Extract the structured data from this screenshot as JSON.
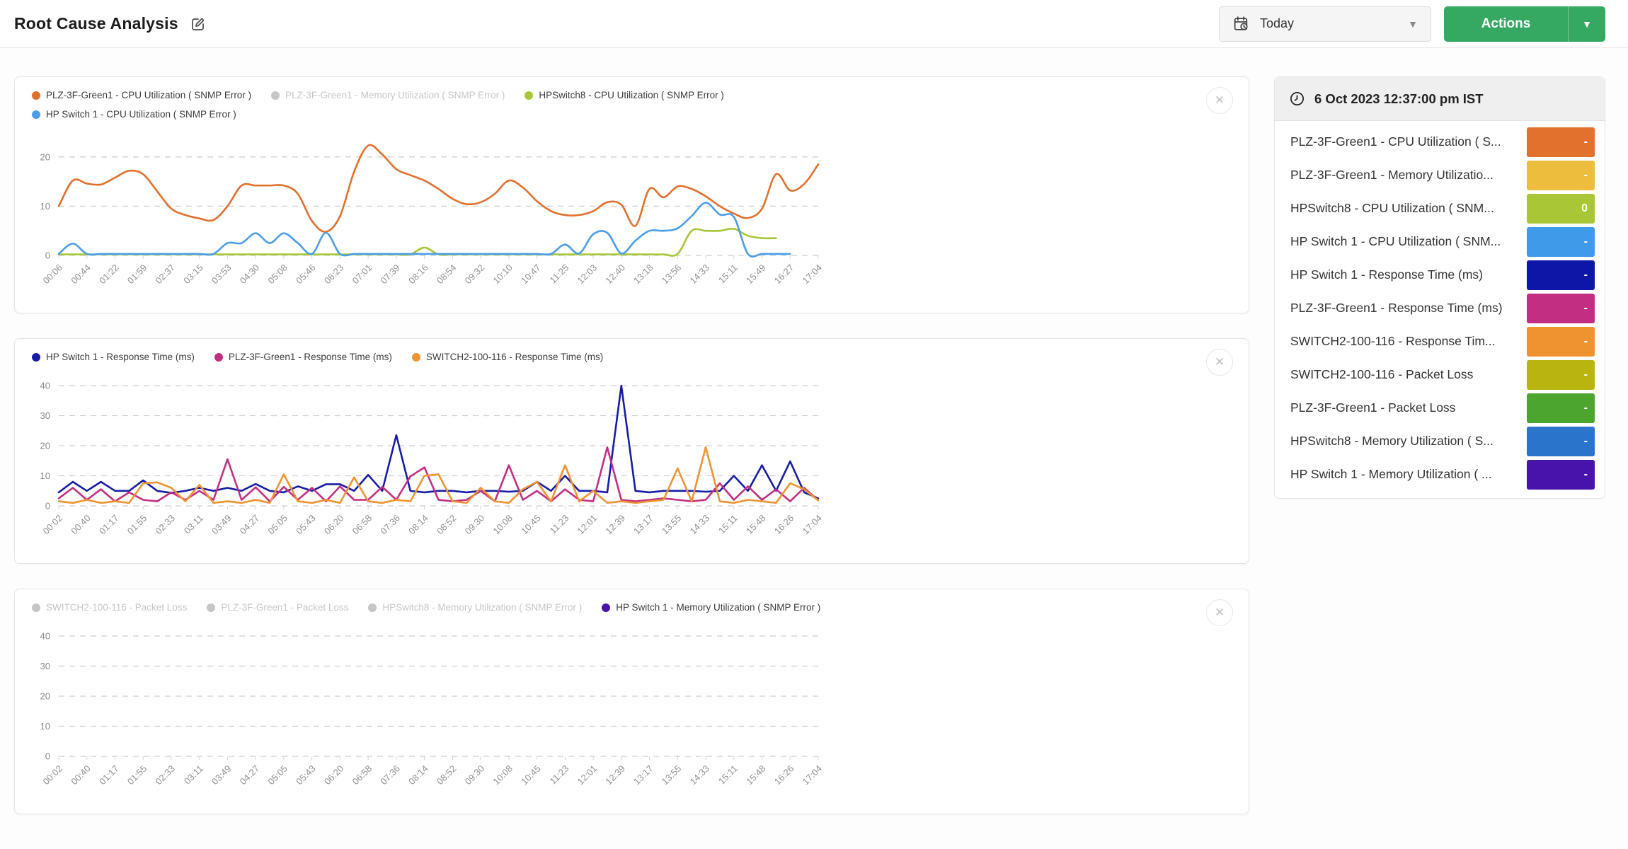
{
  "header": {
    "title": "Root Cause Analysis",
    "date_range_label": "Today",
    "actions_label": "Actions"
  },
  "colors": {
    "accent_green": "#35a862",
    "grid_line": "#cfcfcf",
    "disabled_legend": "#c6c6c6"
  },
  "sidebar": {
    "timestamp": "6 Oct 2023 12:37:00 pm IST",
    "rows": [
      {
        "label": "PLZ-3F-Green1 - CPU Utilization ( S...",
        "value": "-",
        "color": "#e2712e"
      },
      {
        "label": "PLZ-3F-Green1 - Memory Utilizatio...",
        "value": "-",
        "color": "#edbe3d"
      },
      {
        "label": "HPSwitch8 - CPU Utilization ( SNM...",
        "value": "0",
        "color": "#a9c637"
      },
      {
        "label": "HP Switch 1 - CPU Utilization ( SNM...",
        "value": "-",
        "color": "#3f9be9"
      },
      {
        "label": "HP Switch 1 - Response Time (ms)",
        "value": "-",
        "color": "#0d16a6"
      },
      {
        "label": "PLZ-3F-Green1 - Response Time (ms)",
        "value": "-",
        "color": "#c22f82"
      },
      {
        "label": "SWITCH2-100-116 - Response Tim...",
        "value": "-",
        "color": "#ef9330"
      },
      {
        "label": "SWITCH2-100-116 - Packet Loss",
        "value": "-",
        "color": "#b9b40f"
      },
      {
        "label": "PLZ-3F-Green1 - Packet Loss",
        "value": "-",
        "color": "#4ba52f"
      },
      {
        "label": "HPSwitch8 - Memory Utilization ( S...",
        "value": "-",
        "color": "#2a75cb"
      },
      {
        "label": "HP Switch 1 - Memory Utilization ( ...",
        "value": "-",
        "color": "#4813ab"
      }
    ]
  },
  "chart_data": [
    {
      "type": "line",
      "ylim": [
        0,
        25
      ],
      "yticks": [
        0,
        10,
        20
      ],
      "grid": "dashed",
      "legend_position": "top-left",
      "x_labels": [
        "00:06",
        "00:44",
        "01:22",
        "01:59",
        "02:37",
        "03:15",
        "03:53",
        "04:30",
        "05:08",
        "05:46",
        "06:23",
        "07:01",
        "07:39",
        "08:16",
        "08:54",
        "09:32",
        "10:10",
        "10:47",
        "11:25",
        "12:03",
        "12:40",
        "13:18",
        "13:56",
        "14:33",
        "15:11",
        "15:49",
        "16:27",
        "17:04"
      ],
      "series": [
        {
          "name": "PLZ-3F-Green1 - CPU Utilization ( SNMP Error )",
          "color": "#e0702c",
          "enabled": true,
          "smooth": true,
          "values": [
            10,
            15.2,
            14.6,
            14.4,
            15.8,
            17.2,
            16.5,
            13,
            9.5,
            8.2,
            7.5,
            7.2,
            10,
            14.2,
            14.2,
            14.2,
            14.2,
            12.5,
            7,
            4.8,
            8,
            17,
            22.3,
            20.5,
            17.5,
            16.3,
            15.2,
            13.5,
            11.5,
            10.4,
            10.8,
            12.5,
            15.2,
            13.8,
            11,
            9,
            8.2,
            8.2,
            9,
            10.8,
            10.3,
            6,
            13.5,
            11.8,
            14,
            13.5,
            12,
            10,
            8.5,
            7.6,
            9.5,
            16.5,
            13.2,
            14.5,
            18.5
          ]
        },
        {
          "name": "PLZ-3F-Green1 - Memory Utilization ( SNMP Error )",
          "color": "#c6c6c6",
          "enabled": false,
          "smooth": true,
          "values": []
        },
        {
          "name": "HPSwitch8 - CPU Utilization ( SNMP Error )",
          "color": "#a9c637",
          "enabled": true,
          "smooth": true,
          "values": [
            0.2,
            0.2,
            0.2,
            0.2,
            0.2,
            0.2,
            0.2,
            0.2,
            0.2,
            0.2,
            0.2,
            0.2,
            0.2,
            0.2,
            0.2,
            0.2,
            0.2,
            0.2,
            0.2,
            0.2,
            0.2,
            0.2,
            0.2,
            0.2,
            0.2,
            0.2,
            1.6,
            0.2,
            0.2,
            0.2,
            0.2,
            0.2,
            0.2,
            0.2,
            0.2,
            0.2,
            0.2,
            0.2,
            0.2,
            0.2,
            0.2,
            0.2,
            0.2,
            0.2,
            0.3,
            5,
            5,
            5,
            5.4,
            4,
            3.5,
            3.5,
            null,
            null,
            null
          ]
        },
        {
          "name": "HP Switch 1 - CPU Utilization ( SNMP Error )",
          "color": "#4a9ee9",
          "enabled": true,
          "smooth": true,
          "values": [
            0.3,
            2.4,
            0.3,
            0.3,
            0.3,
            0.3,
            0.3,
            0.3,
            0.3,
            0.3,
            0.3,
            0.3,
            2.5,
            2.5,
            4.5,
            2.5,
            4.5,
            2.5,
            0.3,
            4.6,
            0.3,
            0.3,
            0.3,
            0.3,
            0.3,
            0.3,
            0.3,
            0.3,
            0.3,
            0.3,
            0.3,
            0.3,
            0.3,
            0.3,
            0.3,
            0.3,
            2.2,
            0.4,
            4.3,
            4.6,
            0.4,
            3,
            5,
            5,
            5.5,
            8,
            10.7,
            8.3,
            7.8,
            0.3,
            0.3,
            0.3,
            0.3,
            null,
            null
          ]
        }
      ]
    },
    {
      "type": "line",
      "ylim": [
        0,
        44
      ],
      "yticks": [
        0,
        10,
        20,
        30,
        40
      ],
      "grid": "dashed",
      "legend_position": "top-left",
      "x_labels": [
        "00:02",
        "00:40",
        "01:17",
        "01:55",
        "02:33",
        "03:11",
        "03:49",
        "04:27",
        "05:05",
        "05:43",
        "06:20",
        "06:58",
        "07:36",
        "08:14",
        "08:52",
        "09:30",
        "10:08",
        "10:45",
        "11:23",
        "12:01",
        "12:39",
        "13:17",
        "13:55",
        "14:33",
        "15:11",
        "15:48",
        "16:26",
        "17:04"
      ],
      "series": [
        {
          "name": "HP Switch 1 - Response Time (ms)",
          "color": "#151da8",
          "enabled": true,
          "smooth": false,
          "values": [
            4.5,
            8,
            5,
            8,
            5,
            5,
            8.5,
            5,
            4.3,
            5,
            6,
            5,
            6,
            5,
            7.3,
            5,
            4.5,
            6.5,
            5,
            7.2,
            7.2,
            5,
            10.3,
            5,
            23.5,
            5,
            4.5,
            5,
            5,
            4.5,
            5,
            5,
            4.7,
            5,
            8,
            5,
            10,
            5,
            5,
            4.5,
            40,
            5,
            4.5,
            5,
            5,
            5,
            4.7,
            5,
            10,
            5,
            13.5,
            5,
            14.8,
            4.5,
            2.5
          ]
        },
        {
          "name": "PLZ-3F-Green1 - Response Time (ms)",
          "color": "#c22f82",
          "enabled": true,
          "smooth": false,
          "values": [
            2.5,
            6,
            2,
            5.5,
            1.5,
            4.5,
            2,
            1.5,
            4.5,
            2,
            5,
            2,
            15.5,
            2,
            6.2,
            1.5,
            6.3,
            2,
            6,
            1.5,
            6.5,
            2,
            2,
            6.3,
            2,
            9.8,
            12.8,
            2,
            1.5,
            2,
            5,
            1.5,
            13.5,
            2,
            5,
            1.5,
            5.5,
            2,
            1.5,
            19.5,
            2,
            1.5,
            2,
            2.5,
            2,
            1.5,
            2,
            7.5,
            2,
            6.5,
            2,
            5.5,
            1.5,
            6,
            1.8
          ]
        },
        {
          "name": "SWITCH2-100-116 - Response Time (ms)",
          "color": "#ef9330",
          "enabled": true,
          "smooth": false,
          "values": [
            1.5,
            1,
            2,
            1,
            1.5,
            1,
            7.5,
            7.8,
            6,
            1.5,
            7,
            1,
            1.5,
            1,
            2,
            1,
            10.5,
            1.5,
            1,
            2,
            1,
            9.5,
            1.5,
            1,
            2,
            1.5,
            10,
            10.5,
            1.5,
            1,
            6,
            1.5,
            1,
            5.5,
            8,
            1.5,
            13.5,
            1.5,
            5,
            1,
            1.5,
            1,
            1.5,
            2,
            12.5,
            1.5,
            19.5,
            1.5,
            1,
            2,
            1.5,
            1,
            7.5,
            5.5,
            1.8
          ]
        }
      ]
    },
    {
      "type": "line",
      "ylim": [
        0,
        44
      ],
      "yticks": [
        0,
        10,
        20,
        30,
        40
      ],
      "grid": "dashed",
      "legend_position": "top-left",
      "x_labels": [
        "00:02",
        "00:40",
        "01:17",
        "01:55",
        "02:33",
        "03:11",
        "03:49",
        "04:27",
        "05:05",
        "05:43",
        "06:20",
        "06:58",
        "07:36",
        "08:14",
        "08:52",
        "09:30",
        "10:08",
        "10:45",
        "11:23",
        "12:01",
        "12:39",
        "13:17",
        "13:55",
        "14:33",
        "15:11",
        "15:48",
        "16:26",
        "17:04"
      ],
      "series": [
        {
          "name": "SWITCH2-100-116 - Packet Loss",
          "color": "#c6c6c6",
          "enabled": false,
          "smooth": false,
          "values": []
        },
        {
          "name": "PLZ-3F-Green1 - Packet Loss",
          "color": "#c6c6c6",
          "enabled": false,
          "smooth": false,
          "values": []
        },
        {
          "name": "HPSwitch8 - Memory Utilization ( SNMP Error )",
          "color": "#c6c6c6",
          "enabled": false,
          "smooth": false,
          "values": []
        },
        {
          "name": "HP Switch 1 - Memory Utilization ( SNMP Error )",
          "color": "#4813ab",
          "enabled": true,
          "smooth": false,
          "values": []
        }
      ]
    }
  ]
}
